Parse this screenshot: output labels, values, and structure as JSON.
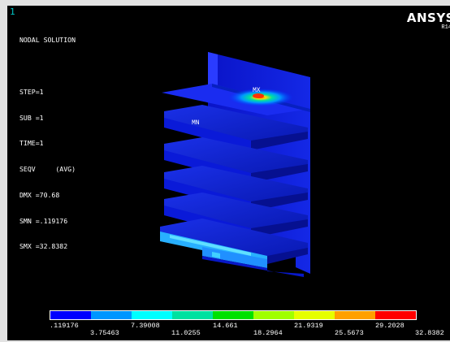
{
  "window_number": "1",
  "brand": "ANSYS",
  "release": "R14",
  "info_lines": [
    "NODAL SOLUTION",
    "",
    "STEP=1",
    "SUB =1",
    "TIME=1",
    "SEQV     (AVG)",
    "DMX =70.68",
    "SMN =.119176",
    "SMX =32.8382"
  ],
  "markers": {
    "max": "MX",
    "min": "MN"
  },
  "legend": {
    "colors": [
      "#0000ff",
      "#0096ff",
      "#00ffff",
      "#00e1a0",
      "#00e100",
      "#a0ff00",
      "#e6ff00",
      "#ffa000",
      "#ff0000"
    ],
    "upper_labels": [
      ".119176",
      "7.39008",
      "14.661",
      "21.9319",
      "29.2028"
    ],
    "lower_labels": [
      "3.75463",
      "11.0255",
      "18.2964",
      "25.5673",
      "32.8382"
    ]
  }
}
